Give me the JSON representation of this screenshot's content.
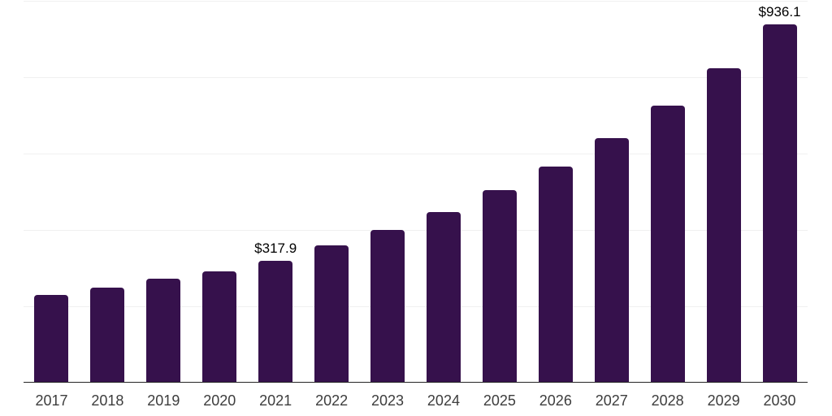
{
  "chart_data": {
    "type": "bar",
    "title": "",
    "xlabel": "",
    "ylabel": "",
    "ylim": [
      0,
      1000
    ],
    "gridline_values": [
      200,
      400,
      600,
      800,
      1000
    ],
    "grid": true,
    "legend": false,
    "categories": [
      "2017",
      "2018",
      "2019",
      "2020",
      "2021",
      "2022",
      "2023",
      "2024",
      "2025",
      "2026",
      "2027",
      "2028",
      "2029",
      "2030"
    ],
    "values": [
      228.7,
      247.9,
      270.2,
      289.4,
      317.9,
      357.4,
      398.9,
      445.7,
      502.1,
      563.8,
      638.3,
      723.4,
      821.3,
      936.1
    ],
    "data_labels": [
      {
        "category": "2021",
        "text": "$317.9"
      },
      {
        "category": "2030",
        "text": "$936.1"
      }
    ]
  },
  "colors": {
    "bar": "#36114C",
    "axis_line": "#262626",
    "gridline": "#F0F0F0",
    "tick_label": "#3D3D3D",
    "value_label": "#000000",
    "background": "#FFFFFF"
  }
}
